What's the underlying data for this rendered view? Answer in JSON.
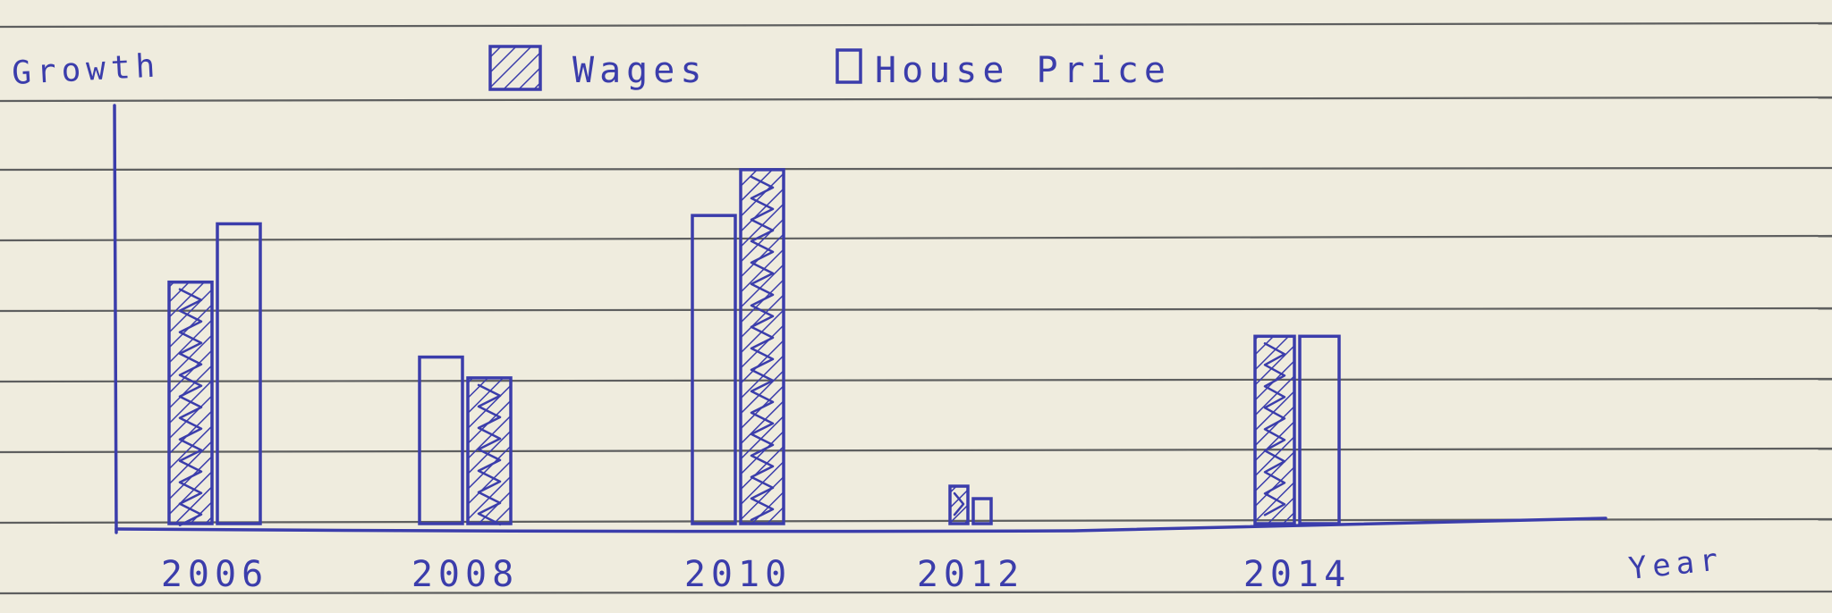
{
  "chart_data": {
    "type": "bar",
    "title": "",
    "xlabel": "Year",
    "ylabel": "Growth",
    "categories": [
      "2006",
      "2008",
      "2010",
      "2012",
      "2014"
    ],
    "series": [
      {
        "name": "Wages",
        "values": [
          5.8,
          3.5,
          8.5,
          0.9,
          4.5
        ]
      },
      {
        "name": "House Price",
        "values": [
          7.2,
          4.0,
          7.4,
          0.6,
          4.5
        ]
      }
    ],
    "ylim": [
      0,
      10
    ],
    "grid": false,
    "legend_position": "top",
    "colors": {
      "ink": "#3b3dab",
      "paper": "#efecde",
      "rules": "#45474a"
    }
  }
}
